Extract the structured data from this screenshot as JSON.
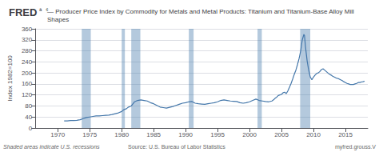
{
  "chart_data": {
    "type": "line",
    "title": "— Producer Price Index by Commodity for Metals and Metal Products: Titanium and Titanium-Base Alloy Mill Shapes",
    "ylabel": "Index 1982=100",
    "annotations": [
      "FRED",
      "â¢",
      "Shaded areas indicate U.S. recessions",
      "Source: U.S. Bureau of Labor Statistics",
      "myfred.grouss.V"
    ],
    "x": [
      1971.0,
      1971.5,
      1972.0,
      1972.5,
      1973.0,
      1973.5,
      1974.0,
      1974.5,
      1975.0,
      1975.5,
      1976.0,
      1976.5,
      1977.0,
      1977.5,
      1978.0,
      1978.5,
      1979.0,
      1979.5,
      1980.0,
      1980.25,
      1980.5,
      1980.75,
      1981.0,
      1981.5,
      1982.0,
      1982.5,
      1983.0,
      1983.5,
      1984.0,
      1984.5,
      1985.0,
      1985.5,
      1986.0,
      1986.5,
      1987.0,
      1987.5,
      1988.0,
      1988.5,
      1989.0,
      1989.5,
      1990.0,
      1990.5,
      1991.0,
      1991.5,
      1992.0,
      1992.5,
      1993.0,
      1993.5,
      1994.0,
      1994.5,
      1995.0,
      1995.5,
      1996.0,
      1996.5,
      1997.0,
      1997.5,
      1998.0,
      1998.5,
      1999.0,
      1999.5,
      2000.0,
      2000.5,
      2001.0,
      2001.5,
      2002.0,
      2002.5,
      2003.0,
      2003.5,
      2003.75,
      2004.0,
      2004.25,
      2004.5,
      2004.75,
      2005.0,
      2005.25,
      2005.5,
      2005.75,
      2006.0,
      2006.25,
      2006.5,
      2006.75,
      2007.0,
      2007.25,
      2007.5,
      2007.75,
      2008.0,
      2008.25,
      2008.5,
      2008.6,
      2008.75,
      2009.0,
      2009.25,
      2009.5,
      2009.75,
      2010.0,
      2010.25,
      2010.5,
      2010.75,
      2011.0,
      2011.25,
      2011.5,
      2011.75,
      2012.0,
      2012.25,
      2012.5,
      2012.75,
      2013.0,
      2013.25,
      2013.5,
      2013.75,
      2014.0,
      2014.25,
      2014.5,
      2014.75,
      2015.0,
      2015.25,
      2015.5,
      2015.75,
      2016.0,
      2016.25,
      2016.5,
      2016.75,
      2017.0,
      2017.25,
      2017.5,
      2017.75,
      2018.0
    ],
    "series": [
      {
        "color": "#4477aa",
        "values": [
          26,
          26,
          27,
          27,
          28,
          30,
          34,
          38,
          40,
          42,
          44,
          44,
          45,
          46,
          47,
          49,
          52,
          55,
          60,
          65,
          68,
          70,
          75,
          80,
          95,
          100,
          102,
          100,
          98,
          92,
          88,
          82,
          76,
          74,
          72,
          75,
          78,
          82,
          86,
          90,
          92,
          95,
          96,
          90,
          88,
          87,
          86,
          88,
          90,
          92,
          95,
          100,
          102,
          100,
          98,
          97,
          96,
          92,
          90,
          92,
          95,
          100,
          105,
          100,
          98,
          96,
          95,
          98,
          102,
          108,
          112,
          118,
          120,
          122,
          128,
          130,
          125,
          135,
          148,
          162,
          178,
          195,
          210,
          230,
          252,
          280,
          320,
          340,
          335,
          295,
          245,
          210,
          185,
          175,
          185,
          192,
          198,
          200,
          205,
          212,
          215,
          210,
          205,
          200,
          195,
          192,
          188,
          185,
          182,
          180,
          178,
          175,
          172,
          168,
          165,
          162,
          160,
          158,
          158,
          158,
          160,
          162,
          165,
          165,
          167,
          168,
          170
        ]
      }
    ],
    "recessions": [
      [
        1973.75,
        1975.17
      ],
      [
        1980.0,
        1980.5
      ],
      [
        1981.5,
        1982.92
      ],
      [
        1990.5,
        1991.25
      ],
      [
        2001.25,
        2001.92
      ],
      [
        2007.92,
        2009.5
      ]
    ],
    "xlim": [
      1966.5,
      2018.5
    ],
    "xticks": [
      1970,
      1975,
      1980,
      1985,
      1990,
      1995,
      2000,
      2005,
      2010,
      2015
    ],
    "ylim": [
      0,
      360
    ],
    "yticks": [
      0,
      40,
      80,
      120,
      160,
      200,
      240,
      280,
      320,
      360
    ],
    "grid": true
  }
}
